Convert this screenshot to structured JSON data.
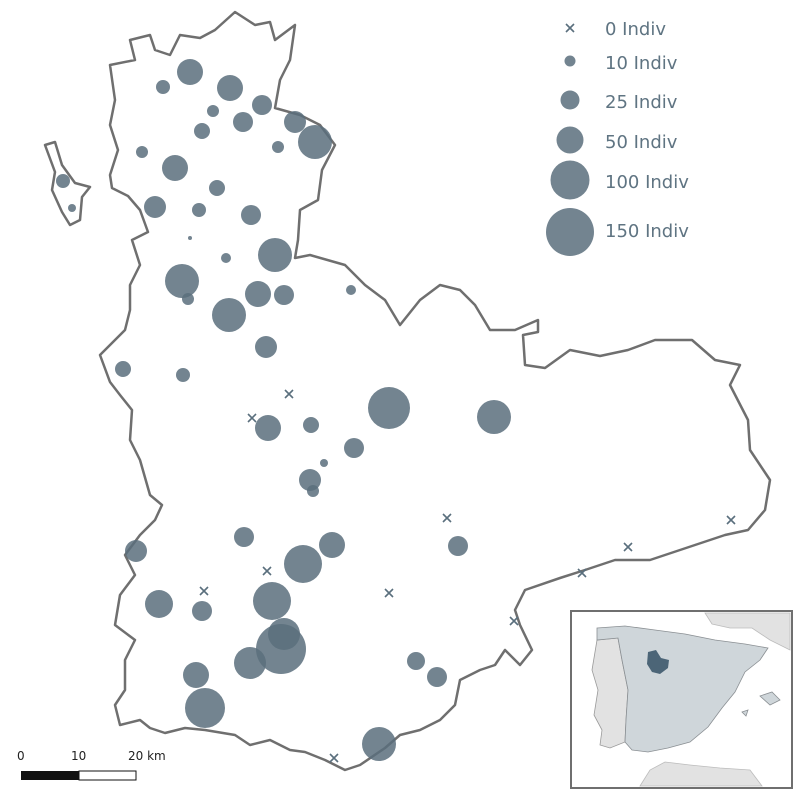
{
  "colors": {
    "symbol": "#5a6f7d",
    "outline": "#6f6f6f",
    "inset_land": "#cfd6da",
    "inset_other": "#e2e2e2",
    "inset_highlight": "#4c6577",
    "legend_text": "#5f7482"
  },
  "legend": {
    "items": [
      {
        "label": "0 Indiv",
        "symbol": "cross"
      },
      {
        "label": "10 Indiv",
        "symbol": "circle"
      },
      {
        "label": "25 Indiv",
        "symbol": "circle"
      },
      {
        "label": "50 Indiv",
        "symbol": "circle"
      },
      {
        "label": "100 Indiv",
        "symbol": "circle"
      },
      {
        "label": "150 Indiv",
        "symbol": "circle"
      }
    ]
  },
  "scale_bar": {
    "ticks": [
      "0",
      "10",
      "20 km"
    ]
  },
  "inset": {
    "subject": "Iberian Peninsula locator map with highlighted province"
  },
  "counts": {
    "zero_count_sites": 15,
    "sites_with_individuals": 62
  }
}
